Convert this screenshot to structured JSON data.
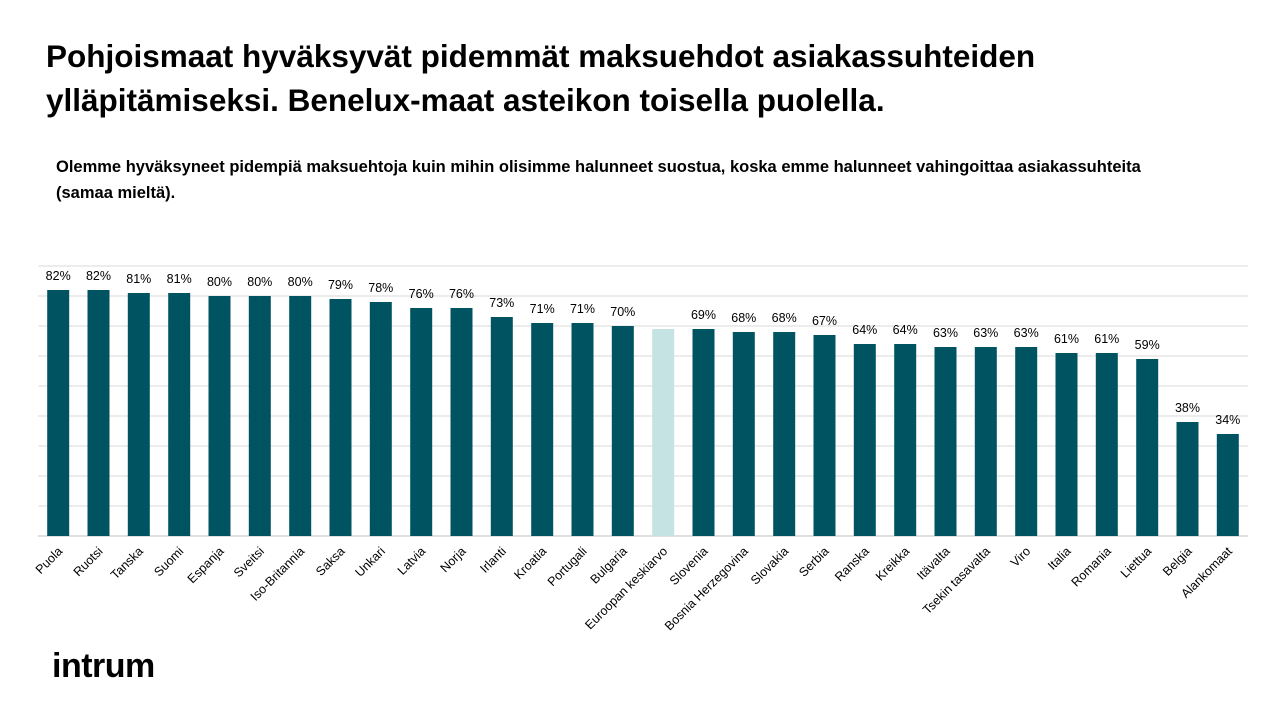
{
  "title": "Pohjoismaat hyväksyvät pidemmät maksuehdot asiakassuhteiden ylläpitämiseksi. Benelux-maat asteikon toisella puolella.",
  "subtitle": "Olemme hyväksyneet pidempiä maksuehtoja kuin mihin olisimme halunneet suostua, koska emme halunneet vahingoittaa asiakassuhteita (samaa mieltä).",
  "brand": "intrum",
  "colors": {
    "bar": "#005462",
    "highlight_bar": "#c4e3e2",
    "grid": "#d9d9d9",
    "text": "#000000"
  },
  "chart_data": {
    "type": "bar",
    "title": "",
    "xlabel": "",
    "ylabel": "",
    "ylim": [
      0,
      90
    ],
    "grid": true,
    "legend": "none",
    "value_suffix": "%",
    "highlight_category": "Euroopan keskiarvo",
    "categories": [
      "Puola",
      "Ruotsi",
      "Tanska",
      "Suomi",
      "Espanja",
      "Sveitsi",
      "Iso-Britannia",
      "Saksa",
      "Unkari",
      "Latvia",
      "Norja",
      "Irlanti",
      "Kroatia",
      "Portugali",
      "Bulgaria",
      "Euroopan keskiarvo",
      "Slovenia",
      "Bosnia Herzegovina",
      "Slovakia",
      "Serbia",
      "Ranska",
      "Kreikka",
      "Itävalta",
      "Tsekin tasavalta",
      "Viro",
      "Italia",
      "Romania",
      "Liettua",
      "Belgia",
      "Alankomaat"
    ],
    "values": [
      82,
      82,
      81,
      81,
      80,
      80,
      80,
      79,
      78,
      76,
      76,
      73,
      71,
      71,
      70,
      69,
      69,
      68,
      68,
      67,
      64,
      64,
      63,
      63,
      63,
      61,
      61,
      59,
      38,
      34
    ],
    "data_labels": [
      "82%",
      "82%",
      "81%",
      "81%",
      "80%",
      "80%",
      "80%",
      "79%",
      "78%",
      "76%",
      "76%",
      "73%",
      "71%",
      "71%",
      "70%",
      "",
      "69%",
      "68%",
      "68%",
      "67%",
      "64%",
      "64%",
      "63%",
      "63%",
      "63%",
      "61%",
      "61%",
      "59%",
      "38%",
      "34%"
    ]
  }
}
